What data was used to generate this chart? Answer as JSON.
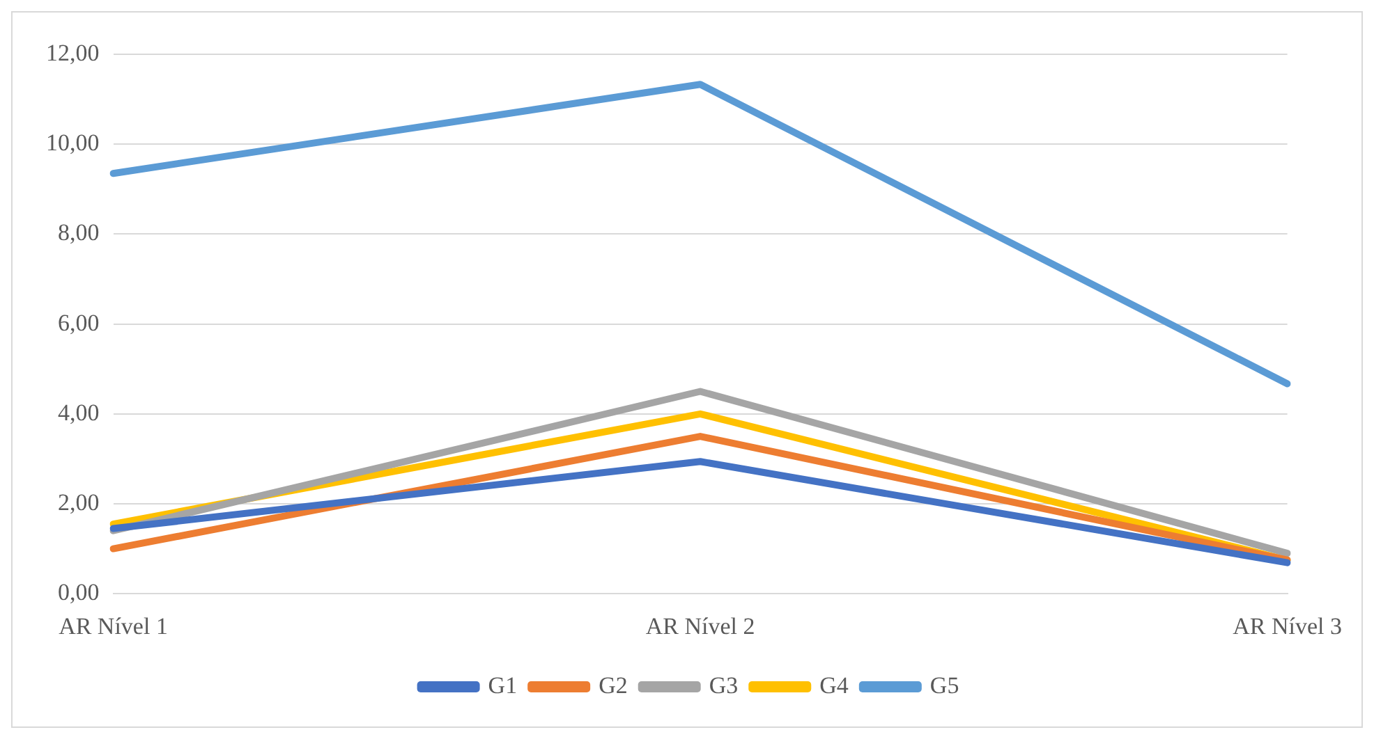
{
  "chart_data": {
    "type": "line",
    "categories": [
      "AR Nível 1",
      "AR Nível 2",
      "AR Nível 3"
    ],
    "series": [
      {
        "name": "G1",
        "color": "#4472c4",
        "values": [
          1.45,
          2.94,
          0.69
        ]
      },
      {
        "name": "G2",
        "color": "#ed7d31",
        "values": [
          1.0,
          3.5,
          0.75
        ]
      },
      {
        "name": "G3",
        "color": "#a5a5a5",
        "values": [
          1.4,
          4.5,
          0.9
        ]
      },
      {
        "name": "G4",
        "color": "#ffc000",
        "values": [
          1.55,
          4.0,
          0.75
        ]
      },
      {
        "name": "G5",
        "color": "#5b9bd5",
        "values": [
          9.35,
          11.33,
          4.67
        ]
      }
    ],
    "ylim": [
      0,
      12
    ],
    "yticks": [
      {
        "value": 0,
        "label": "0,00"
      },
      {
        "value": 2,
        "label": "2,00"
      },
      {
        "value": 4,
        "label": "4,00"
      },
      {
        "value": 6,
        "label": "6,00"
      },
      {
        "value": 8,
        "label": "8,00"
      },
      {
        "value": 10,
        "label": "10,00"
      },
      {
        "value": 12,
        "label": "12,00"
      }
    ],
    "grid": "y",
    "legend": "bottom",
    "marker": "none",
    "line_style": "solid"
  }
}
